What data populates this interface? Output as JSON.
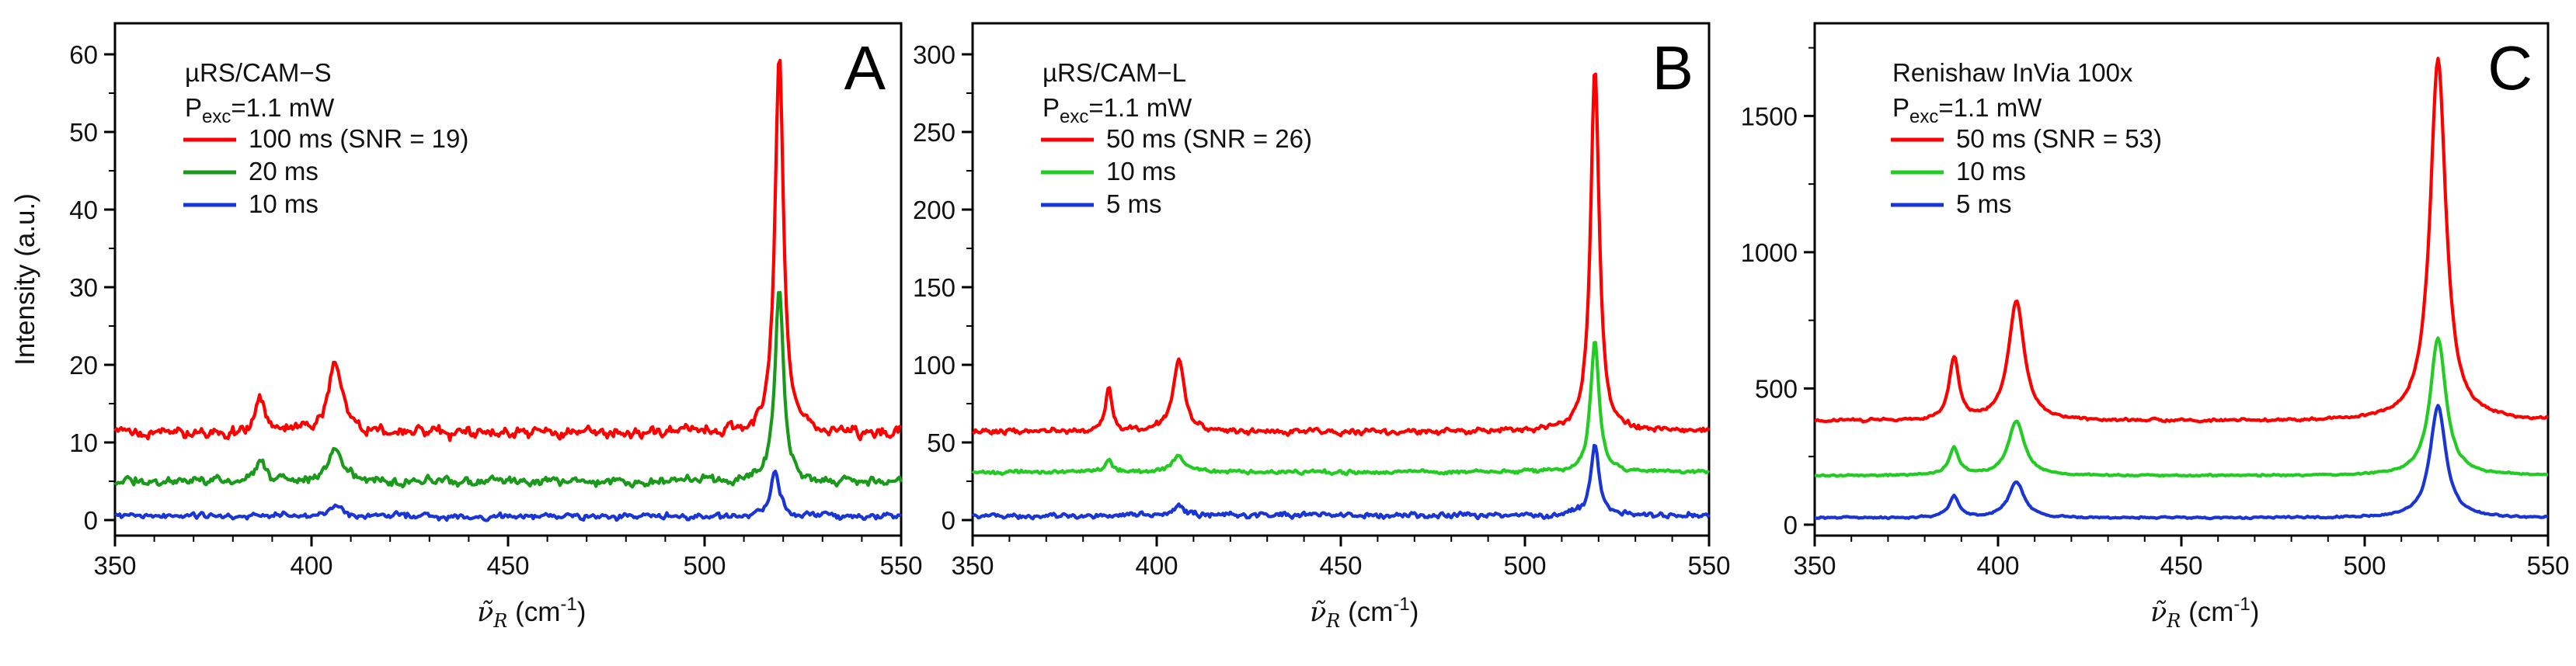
{
  "chart_data": [
    {
      "type": "line",
      "panel_letter": "A",
      "instrument": "µRS/CAM−S",
      "pexc_prefix": "P",
      "pexc_sub": "exc",
      "pexc_value": "=1.1 mW",
      "xlabel_suffix": " (cm",
      "xlabel_sup": "-1",
      "xlabel_close": ")",
      "ylabel": "Intensity (a.u.)",
      "xlim": [
        350,
        550
      ],
      "ylim": [
        -2,
        64
      ],
      "xticks": [
        "350",
        "400",
        "450",
        "500",
        "550"
      ],
      "yticks": [
        "0",
        "10",
        "20",
        "30",
        "40",
        "50",
        "60"
      ],
      "series": [
        {
          "name": "100 ms (SNR = 19)",
          "color": "#ff0000",
          "baseline": 11.2,
          "noise": 0.9,
          "peaks": [
            [
              387,
              4.5,
              1.5
            ],
            [
              406,
              9,
              2.2
            ],
            [
              519,
              49,
              1.3
            ]
          ]
        },
        {
          "name": "20 ms",
          "color": "#1a9a1a",
          "baseline": 5.0,
          "noise": 0.7,
          "peaks": [
            [
              387,
              2.5,
              1.5
            ],
            [
              406,
              4.2,
              2.2
            ],
            [
              519,
              25,
              1.3
            ]
          ]
        },
        {
          "name": "10 ms",
          "color": "#1a35d6",
          "baseline": 0.5,
          "noise": 0.5,
          "peaks": [
            [
              406,
              1.2,
              2.2
            ],
            [
              518,
              5.8,
              1.3
            ]
          ]
        }
      ]
    },
    {
      "type": "line",
      "panel_letter": "B",
      "instrument": "µRS/CAM−L",
      "pexc_prefix": "P",
      "pexc_sub": "exc",
      "pexc_value": "=1.1 mW",
      "xlabel_suffix": " (cm",
      "xlabel_sup": "-1",
      "xlabel_close": ")",
      "ylabel": "",
      "xlim": [
        350,
        550
      ],
      "ylim": [
        -10,
        320
      ],
      "xticks": [
        "350",
        "400",
        "450",
        "500",
        "550"
      ],
      "yticks": [
        "0",
        "50",
        "100",
        "150",
        "200",
        "250",
        "300"
      ],
      "series": [
        {
          "name": "50 ms (SNR = 26)",
          "color": "#ff0000",
          "baseline": 57,
          "noise": 2.2,
          "peaks": [
            [
              387,
              28,
              1.1
            ],
            [
              406,
              48,
              1.8
            ],
            [
              519,
              235,
              1.4
            ]
          ]
        },
        {
          "name": "10 ms",
          "color": "#22cc22",
          "baseline": 31,
          "noise": 1.6,
          "peaks": [
            [
              387,
              8,
              1.1
            ],
            [
              406,
              11,
              1.8
            ],
            [
              519,
              84,
              1.4
            ]
          ]
        },
        {
          "name": "5 ms",
          "color": "#1a35d6",
          "baseline": 3,
          "noise": 2.2,
          "peaks": [
            [
              406,
              7,
              1.8
            ],
            [
              519,
              45,
              1.4
            ]
          ]
        }
      ]
    },
    {
      "type": "line",
      "panel_letter": "C",
      "instrument": "Renishaw InVia 100x",
      "pexc_prefix": "P",
      "pexc_sub": "exc",
      "pexc_value": "=1.1 mW",
      "xlabel_suffix": " (cm",
      "xlabel_sup": "-1",
      "xlabel_close": ")",
      "ylabel": "",
      "xlim": [
        350,
        550
      ],
      "ylim": [
        -40,
        1840
      ],
      "xticks": [
        "350",
        "400",
        "450",
        "500",
        "550"
      ],
      "yticks": [
        "0",
        "500",
        "1000",
        "1500"
      ],
      "series": [
        {
          "name": "50 ms (SNR = 53)",
          "color": "#ff0000",
          "baseline": 380,
          "noise": 6,
          "peaks": [
            [
              388,
              230,
              1.6
            ],
            [
              405,
              440,
              2.6
            ],
            [
              520,
              1330,
              2.6
            ]
          ]
        },
        {
          "name": "10 ms",
          "color": "#22cc22",
          "baseline": 180,
          "noise": 4,
          "peaks": [
            [
              388,
              100,
              1.6
            ],
            [
              405,
              200,
              2.6
            ],
            [
              520,
              505,
              2.6
            ]
          ]
        },
        {
          "name": "5 ms",
          "color": "#1a35d6",
          "baseline": 25,
          "noise": 4,
          "peaks": [
            [
              388,
              80,
              1.6
            ],
            [
              405,
              130,
              2.6
            ],
            [
              520,
              410,
              2.6
            ]
          ]
        }
      ]
    }
  ]
}
